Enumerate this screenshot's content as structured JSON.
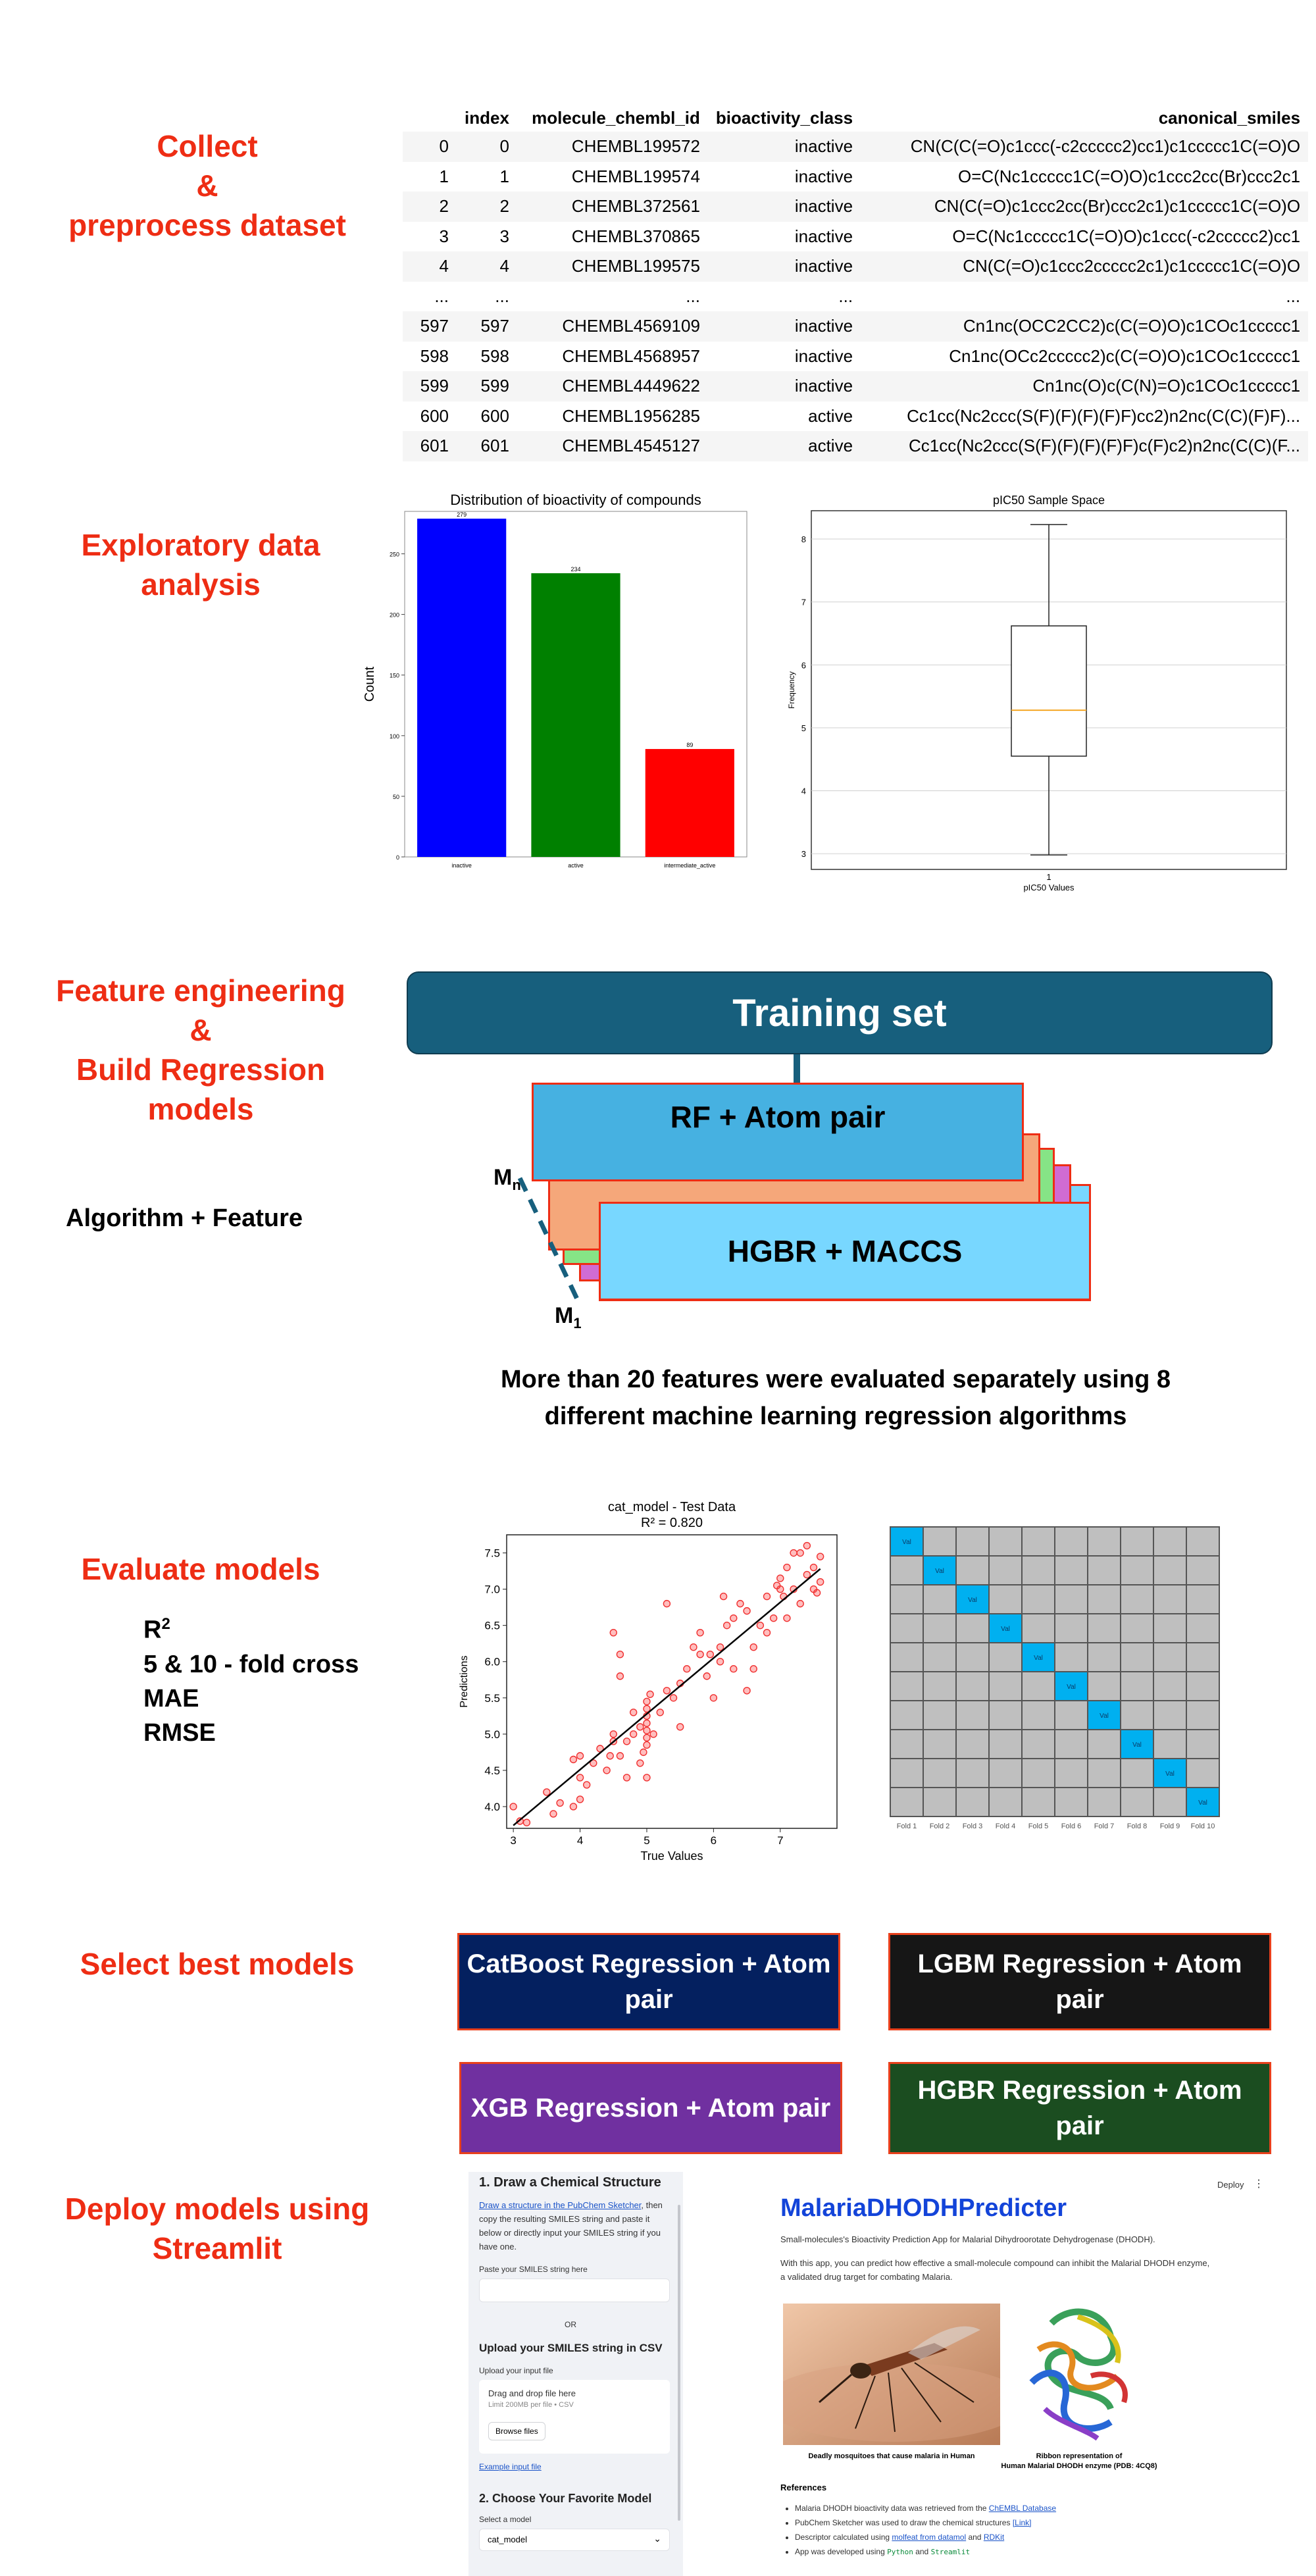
{
  "stages": {
    "collect": [
      "Collect",
      "&",
      "preprocess dataset"
    ],
    "eda": [
      "Exploratory data",
      "analysis"
    ],
    "feature": [
      "Feature engineering",
      "&",
      "Build Regression",
      "models"
    ],
    "evaluate": "Evaluate models",
    "select": "Select best models",
    "deploy": [
      "Deploy models using",
      "Streamlit"
    ]
  },
  "table": {
    "columns": [
      "",
      "index",
      "molecule_chembl_id",
      "bioactivity_class",
      "canonical_smiles"
    ],
    "rows": [
      [
        "0",
        "0",
        "CHEMBL199572",
        "inactive",
        "CN(C(C(=O)c1ccc(-c2ccccc2)cc1)c1ccccc1C(=O)O"
      ],
      [
        "1",
        "1",
        "CHEMBL199574",
        "inactive",
        "O=C(Nc1ccccc1C(=O)O)c1ccc2cc(Br)ccc2c1"
      ],
      [
        "2",
        "2",
        "CHEMBL372561",
        "inactive",
        "CN(C(=O)c1ccc2cc(Br)ccc2c1)c1ccccc1C(=O)O"
      ],
      [
        "3",
        "3",
        "CHEMBL370865",
        "inactive",
        "O=C(Nc1ccccc1C(=O)O)c1ccc(-c2ccccc2)cc1"
      ],
      [
        "4",
        "4",
        "CHEMBL199575",
        "inactive",
        "CN(C(=O)c1ccc2ccccc2c1)c1ccccc1C(=O)O"
      ],
      [
        "...",
        "...",
        "...",
        "...",
        "..."
      ],
      [
        "597",
        "597",
        "CHEMBL4569109",
        "inactive",
        "Cn1nc(OCC2CC2)c(C(=O)O)c1COc1ccccc1"
      ],
      [
        "598",
        "598",
        "CHEMBL4568957",
        "inactive",
        "Cn1nc(OCc2ccccc2)c(C(=O)O)c1COc1ccccc1"
      ],
      [
        "599",
        "599",
        "CHEMBL4449622",
        "inactive",
        "Cn1nc(O)c(C(N)=O)c1COc1ccccc1"
      ],
      [
        "600",
        "600",
        "CHEMBL1956285",
        "active",
        "Cc1cc(Nc2ccc(S(F)(F)(F)(F)F)cc2)n2nc(C(C)(F)F)..."
      ],
      [
        "601",
        "601",
        "CHEMBL4545127",
        "active",
        "Cc1cc(Nc2ccc(S(F)(F)(F)(F)F)c(F)c2)n2nc(C(C)(F..."
      ]
    ]
  },
  "chart_data": [
    {
      "type": "bar",
      "title": "Distribution of bioactivity of compounds",
      "categories": [
        "inactive",
        "active",
        "intermediate_active"
      ],
      "values": [
        279,
        234,
        89
      ],
      "colors": [
        "#0000ff",
        "#008000",
        "#ff0000"
      ],
      "ylabel": "Count",
      "xlabel": "",
      "ylim": [
        0,
        285
      ],
      "yticks": [
        0,
        50,
        100,
        150,
        200,
        250
      ]
    },
    {
      "type": "box",
      "title": "pIC50 Sample Space",
      "xlabel": "pIC50 Values",
      "ylabel": "Frequency",
      "category": "1",
      "min": 2.98,
      "q1": 4.55,
      "median": 5.28,
      "q3": 6.62,
      "max": 8.23,
      "ylim": [
        2.75,
        8.45
      ],
      "yticks": [
        3,
        4,
        5,
        6,
        7,
        8
      ],
      "grid": true
    },
    {
      "type": "scatter",
      "title": "cat_model - Test Data",
      "subtitle": "R² = 0.820",
      "xlabel": "True Values",
      "ylabel": "Predictions",
      "xlim": [
        2.9,
        7.85
      ],
      "ylim": [
        3.7,
        7.75
      ],
      "xticks": [
        3,
        4,
        5,
        6,
        7
      ],
      "yticks": [
        4.0,
        4.5,
        5.0,
        5.5,
        6.0,
        6.5,
        7.0,
        7.5
      ],
      "xtick_labels": [
        "3",
        "4",
        "5",
        "6",
        "7"
      ],
      "ytick_labels": [
        "4.0",
        "4.5",
        "5.0",
        "5.5",
        "6.0",
        "6.5",
        "7.0",
        "7.5"
      ],
      "fit_line": [
        [
          3.0,
          3.74
        ],
        [
          7.6,
          7.28
        ]
      ],
      "points": [
        [
          3.0,
          4.0
        ],
        [
          3.1,
          3.8
        ],
        [
          3.2,
          3.78
        ],
        [
          3.5,
          4.2
        ],
        [
          3.7,
          4.05
        ],
        [
          3.9,
          4.65
        ],
        [
          4.0,
          4.7
        ],
        [
          3.9,
          4.0
        ],
        [
          4.0,
          4.1
        ],
        [
          4.1,
          4.3
        ],
        [
          4.2,
          4.6
        ],
        [
          4.3,
          4.8
        ],
        [
          4.4,
          4.5
        ],
        [
          4.45,
          4.7
        ],
        [
          4.5,
          4.9
        ],
        [
          4.5,
          5.0
        ],
        [
          4.5,
          6.4
        ],
        [
          4.6,
          6.1
        ],
        [
          4.6,
          5.8
        ],
        [
          4.6,
          4.7
        ],
        [
          4.7,
          4.4
        ],
        [
          4.7,
          4.9
        ],
        [
          4.8,
          5.0
        ],
        [
          4.9,
          5.1
        ],
        [
          4.9,
          4.6
        ],
        [
          4.95,
          4.75
        ],
        [
          5.0,
          4.85
        ],
        [
          5.0,
          4.95
        ],
        [
          5.0,
          5.05
        ],
        [
          5.0,
          5.15
        ],
        [
          5.0,
          5.25
        ],
        [
          5.0,
          5.35
        ],
        [
          5.0,
          5.45
        ],
        [
          5.0,
          4.4
        ],
        [
          5.05,
          5.55
        ],
        [
          5.1,
          5.0
        ],
        [
          5.2,
          5.3
        ],
        [
          5.3,
          6.8
        ],
        [
          5.3,
          5.6
        ],
        [
          5.4,
          5.5
        ],
        [
          5.5,
          5.7
        ],
        [
          5.6,
          5.9
        ],
        [
          5.7,
          6.2
        ],
        [
          5.8,
          6.4
        ],
        [
          5.8,
          6.1
        ],
        [
          5.9,
          5.8
        ],
        [
          5.95,
          6.1
        ],
        [
          6.0,
          5.5
        ],
        [
          6.1,
          6.0
        ],
        [
          6.1,
          6.2
        ],
        [
          6.15,
          6.9
        ],
        [
          6.2,
          6.5
        ],
        [
          6.3,
          6.6
        ],
        [
          6.3,
          5.9
        ],
        [
          6.4,
          6.8
        ],
        [
          6.5,
          6.7
        ],
        [
          6.5,
          5.6
        ],
        [
          6.6,
          5.9
        ],
        [
          6.6,
          6.2
        ],
        [
          6.7,
          6.5
        ],
        [
          6.8,
          6.9
        ],
        [
          6.9,
          6.6
        ],
        [
          7.0,
          7.0
        ],
        [
          7.0,
          7.15
        ],
        [
          7.05,
          6.9
        ],
        [
          7.1,
          6.6
        ],
        [
          7.1,
          7.3
        ],
        [
          7.2,
          7.0
        ],
        [
          7.3,
          7.5
        ],
        [
          7.3,
          6.8
        ],
        [
          7.4,
          7.6
        ],
        [
          7.4,
          7.2
        ],
        [
          7.5,
          7.0
        ],
        [
          7.5,
          7.3
        ],
        [
          7.55,
          6.95
        ],
        [
          7.6,
          7.1
        ],
        [
          7.6,
          7.45
        ],
        [
          6.95,
          7.05
        ],
        [
          5.5,
          5.1
        ],
        [
          4.0,
          4.4
        ],
        [
          3.6,
          3.9
        ],
        [
          4.8,
          5.3
        ],
        [
          6.8,
          6.4
        ],
        [
          7.2,
          7.5
        ]
      ]
    }
  ],
  "pipeline": {
    "training_set": "Training set",
    "algo_feature": "Algorithm +  Feature",
    "model_top": "RF + Atom pair",
    "model_bottom": "HGBR + MACCS",
    "m_n": "M",
    "m_n_sub": "n",
    "m_1": "M",
    "m_1_sub": "1",
    "caption_l1": "More than 20 features were evaluated separately using 8",
    "caption_l2": "different machine learning regression algorithms"
  },
  "metrics": {
    "r2": "R",
    "r2_sup": "2",
    "cv": "5 & 10 - fold cross",
    "mae": "MAE",
    "rmse": "RMSE"
  },
  "cv_grid": {
    "cell_label": "Val",
    "folds": 10,
    "x_labels": [
      "Fold 1",
      "Fold 2",
      "Fold 3",
      "Fold 4",
      "Fold 5",
      "Fold 6",
      "Fold 7",
      "Fold 8",
      "Fold 9",
      "Fold 10"
    ],
    "val_color": "#00b0f0",
    "train_color": "#bfbfbf"
  },
  "best_models": [
    {
      "label": "CatBoost Regression  + Atom pair",
      "color": "#04205f"
    },
    {
      "label": "LGBM Regression  + Atom pair",
      "color": "#161616"
    },
    {
      "label": "XGB Regression  + Atom pair",
      "color": "#7030a0"
    },
    {
      "label": "HGBR Regression + Atom pair",
      "color": "#1b4d20"
    }
  ],
  "app": {
    "s1_title": "1. Draw a Chemical Structure",
    "s1_link": "Draw a structure in the PubChem Sketcher",
    "s1_text": ", then copy the resulting SMILES string and paste it below or directly input your SMILES string if you have one.",
    "paste_label": "Paste your SMILES string here",
    "or": "OR",
    "upload_title": "Upload your SMILES string in CSV",
    "upload_label": "Upload your input file",
    "drop_text": "Drag and drop file here",
    "limit_text": "Limit 200MB per file • CSV",
    "browse": "Browse files",
    "example_link": "Example input file",
    "s2_title": "2. Choose Your Favorite Model",
    "select_label": "Select a model",
    "select_value": "cat_model",
    "deploy": "Deploy",
    "app_title": "MalariaDHODHPredicter",
    "intro1": "Small-molecules's Bioactivity Prediction App for Malarial Dihydroorotate Dehydrogenase (DHODH).",
    "intro2": "With this app, you can predict how effective a small-molecule compound can inhibit the Malarial DHODH enzyme, a validated drug target for combating Malaria.",
    "cap1": "Deadly mosquitoes that cause malaria in Human",
    "cap2a": "Ribbon representation of",
    "cap2b": "Human Malarial DHODH enzyme (PDB: 4CQ8)",
    "refs_title": "References",
    "refs": [
      {
        "pre": "Malaria DHODH bioactivity data was retrieved from the ",
        "link": "ChEMBL Database",
        "post": ""
      },
      {
        "pre": "PubChem Sketcher was used to draw the chemical structures ",
        "link": "[Link]",
        "post": ""
      },
      {
        "pre": "Descriptor calculated using ",
        "link": "molfeat from datamol",
        "post": " and ",
        "link2": "RDKit"
      },
      {
        "pre": "App was developed using ",
        "code1": "Python",
        "mid": " and ",
        "code2": "Streamlit"
      }
    ]
  }
}
